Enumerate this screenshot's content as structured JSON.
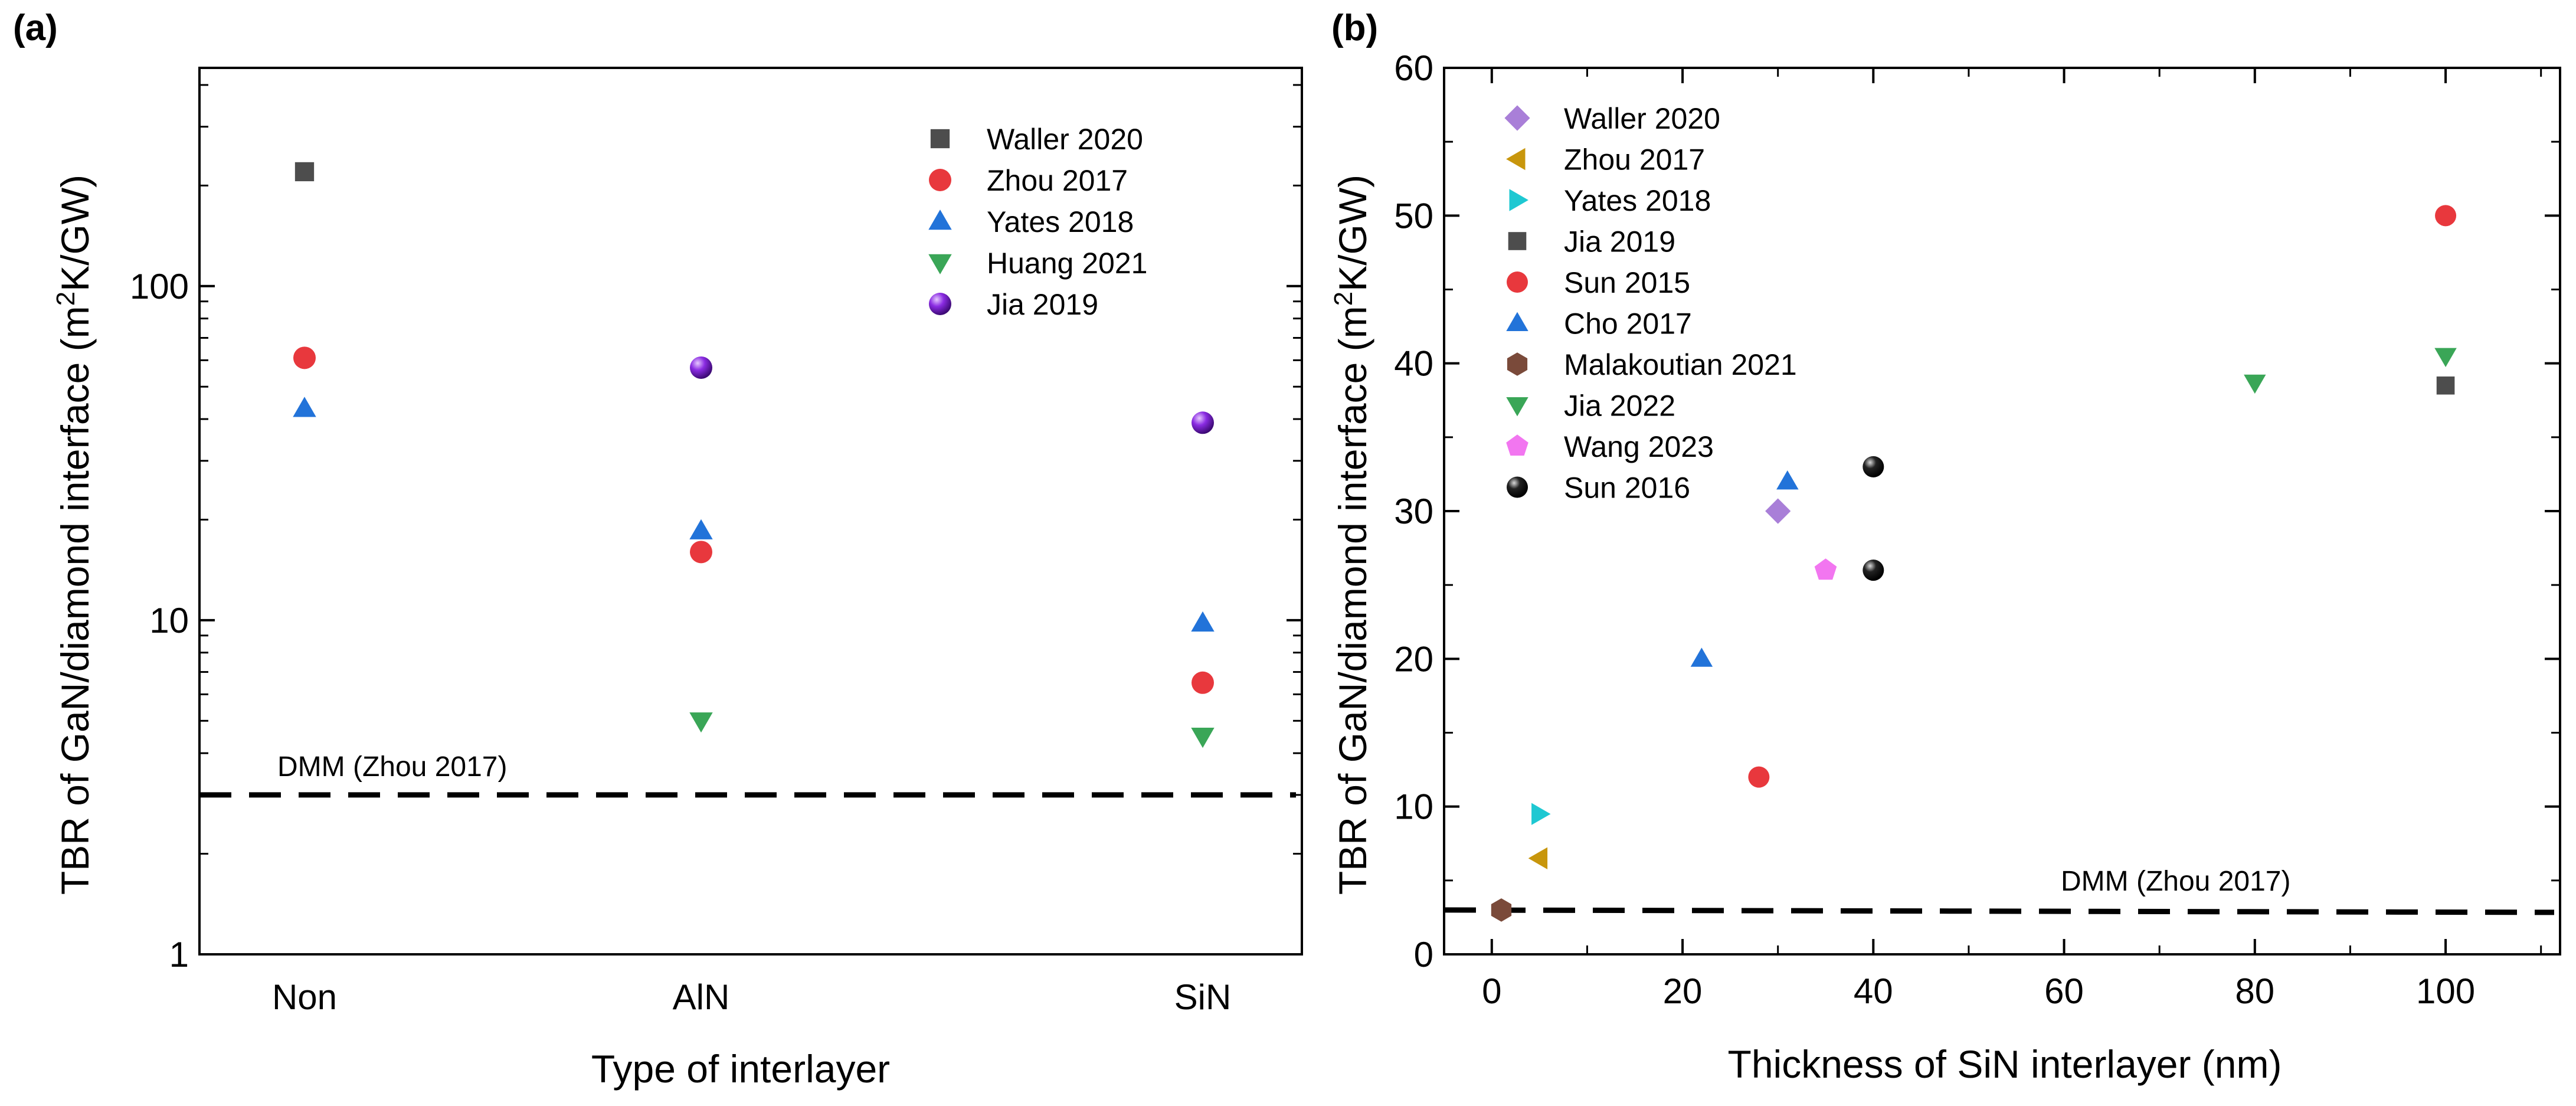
{
  "chart_data": [
    {
      "panel_label": "(a)",
      "type": "scatter",
      "xlabel": "Type of interlayer",
      "ylabel_main": "TBR of GaN/diamond interface (m",
      "ylabel_sup": "2",
      "ylabel_tail": "K/GW)",
      "yscale": "log",
      "ylim": [
        1,
        450
      ],
      "categories": [
        "Non",
        "AlN",
        "SiN"
      ],
      "ytick_labels": [
        "1",
        "10",
        "100"
      ],
      "ytick_values": [
        1,
        10,
        100
      ],
      "series": [
        {
          "name": "Waller 2020",
          "marker": "square",
          "color": "#4d4d4d",
          "points": [
            {
              "category": "Non",
              "y": 220
            }
          ]
        },
        {
          "name": "Zhou 2017",
          "marker": "circle",
          "color": "#e8383d",
          "points": [
            {
              "category": "Non",
              "y": 61
            },
            {
              "category": "AlN",
              "y": 16
            },
            {
              "category": "SiN",
              "y": 6.5
            }
          ]
        },
        {
          "name": "Yates 2018",
          "marker": "triangle-up",
          "color": "#2273d9",
          "points": [
            {
              "category": "Non",
              "y": 43
            },
            {
              "category": "AlN",
              "y": 18.5
            },
            {
              "category": "SiN",
              "y": 9.8
            }
          ]
        },
        {
          "name": "Huang 2021",
          "marker": "triangle-down",
          "color": "#3aa657",
          "points": [
            {
              "category": "AlN",
              "y": 5
            },
            {
              "category": "SiN",
              "y": 4.5
            }
          ]
        },
        {
          "name": "Jia 2019",
          "marker": "sphere",
          "color": "#8a2be2",
          "points": [
            {
              "category": "AlN",
              "y": 57
            },
            {
              "category": "SiN",
              "y": 39
            }
          ]
        }
      ],
      "reference_line": {
        "label": "DMM (Zhou 2017)",
        "y": 3
      }
    },
    {
      "panel_label": "(b)",
      "type": "scatter",
      "xlabel": "Thickness of SiN interlayer (nm)",
      "ylabel_main": "TBR of GaN/diamond interface (m",
      "ylabel_sup": "2",
      "ylabel_tail": "K/GW)",
      "xlim": [
        -5,
        112
      ],
      "ylim": [
        0,
        60
      ],
      "xticks": [
        0,
        20,
        40,
        60,
        80,
        100
      ],
      "yticks": [
        0,
        10,
        20,
        30,
        40,
        50,
        60
      ],
      "series": [
        {
          "name": "Waller 2020",
          "marker": "diamond",
          "color": "#a97fd8",
          "points": [
            {
              "x": 30,
              "y": 30
            }
          ]
        },
        {
          "name": "Zhou 2017",
          "marker": "triangle-left",
          "color": "#c8960c",
          "points": [
            {
              "x": 5,
              "y": 6.5
            }
          ]
        },
        {
          "name": "Yates 2018",
          "marker": "triangle-right",
          "color": "#1ec8d2",
          "points": [
            {
              "x": 5,
              "y": 9.5
            }
          ]
        },
        {
          "name": "Jia 2019",
          "marker": "square",
          "color": "#4d4d4d",
          "points": [
            {
              "x": 100,
              "y": 38.5
            }
          ]
        },
        {
          "name": "Sun 2015",
          "marker": "circle",
          "color": "#e8383d",
          "points": [
            {
              "x": 28,
              "y": 12
            },
            {
              "x": 100,
              "y": 50
            }
          ]
        },
        {
          "name": "Cho 2017",
          "marker": "triangle-up",
          "color": "#2273d9",
          "points": [
            {
              "x": 22,
              "y": 20
            },
            {
              "x": 31,
              "y": 32
            }
          ]
        },
        {
          "name": "Malakoutian 2021",
          "marker": "hexagon",
          "color": "#7a4a3a",
          "points": [
            {
              "x": 1,
              "y": 3
            }
          ]
        },
        {
          "name": "Jia 2022",
          "marker": "triangle-down",
          "color": "#3aa657",
          "points": [
            {
              "x": 80,
              "y": 38.7
            },
            {
              "x": 100,
              "y": 40.5
            }
          ]
        },
        {
          "name": "Wang 2023",
          "marker": "pentagon",
          "color": "#f276f0",
          "points": [
            {
              "x": 35,
              "y": 26
            }
          ]
        },
        {
          "name": "Sun 2016",
          "marker": "sphere",
          "color": "#111111",
          "points": [
            {
              "x": 40,
              "y": 33
            },
            {
              "x": 40,
              "y": 26
            }
          ]
        }
      ],
      "reference_line": {
        "label": "DMM (Zhou 2017)",
        "y": 3
      }
    }
  ]
}
